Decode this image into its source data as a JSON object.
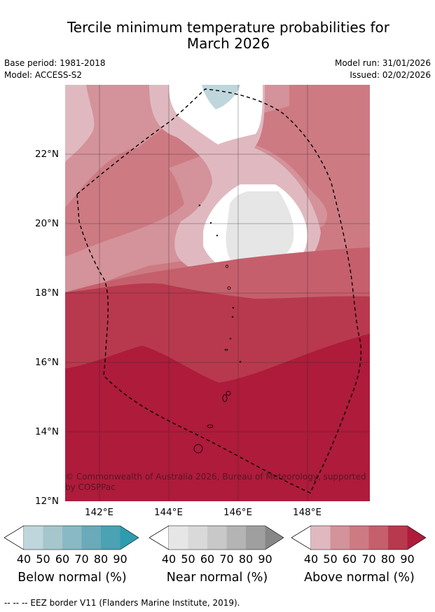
{
  "title_line1": "Tercile minimum temperature probabilities for",
  "title_line2": "March 2026",
  "base_period": "Base period: 1981-2018",
  "model": "Model: ACCESS-S2",
  "model_run": "Model run: 31/01/2026",
  "issued": "Issued: 02/02/2026",
  "map": {
    "lat_labels": [
      "22°N",
      "20°N",
      "18°N",
      "16°N",
      "14°N",
      "12°N"
    ],
    "lon_labels": [
      "142°E",
      "144°E",
      "146°E",
      "148°E"
    ],
    "lat_range": [
      12,
      24
    ],
    "lon_range": [
      141,
      149.8
    ],
    "copyright": "© Commonwealth of Australia 2026, Bureau of Meteorology, supported by COSPPac"
  },
  "colorbars": [
    {
      "name": "below",
      "title": "Below normal (%)",
      "ticks": [
        "40",
        "50",
        "60",
        "70",
        "80",
        "90"
      ],
      "colors": [
        "#bed6dc",
        "#a6c6cd",
        "#89b9c4",
        "#6aaab9",
        "#4aa2b2",
        "#2d9cae"
      ]
    },
    {
      "name": "near",
      "title": "Near normal (%)",
      "ticks": [
        "40",
        "50",
        "60",
        "70",
        "80",
        "90"
      ],
      "colors": [
        "#e6e6e6",
        "#d9d9d9",
        "#c8c8c8",
        "#b4b4b4",
        "#9f9f9f",
        "#878787"
      ]
    },
    {
      "name": "above",
      "title": "Above normal (%)",
      "ticks": [
        "40",
        "50",
        "60",
        "70",
        "80",
        "90"
      ],
      "colors": [
        "#e0b9c0",
        "#d4929a",
        "#cd7a83",
        "#c55f6c",
        "#b8394d",
        "#ae1b3b"
      ]
    }
  ],
  "footer": "--  --  -- EEZ border V11 (Flanders Marine Institute, 2019)."
}
